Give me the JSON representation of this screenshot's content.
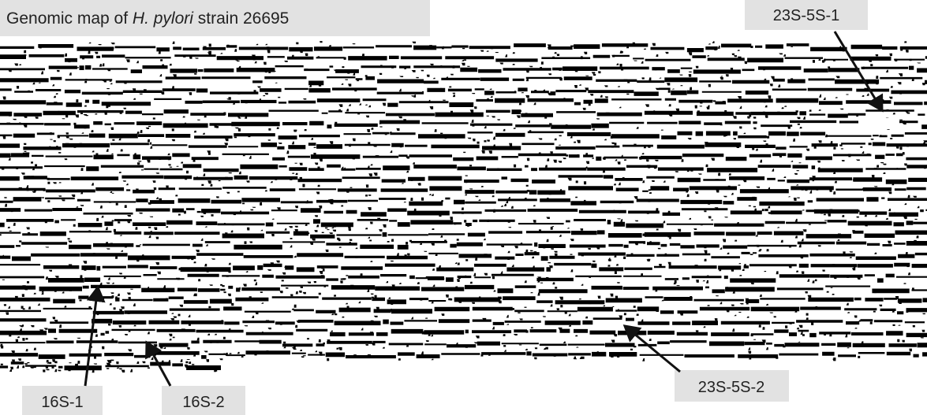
{
  "title": {
    "prefix": "Genomic map of ",
    "species": "H. pylori",
    "suffix": " strain 26695"
  },
  "labels": [
    "23S-5S-1",
    "16S-1",
    "16S-2",
    "23S-5S-2"
  ]
}
